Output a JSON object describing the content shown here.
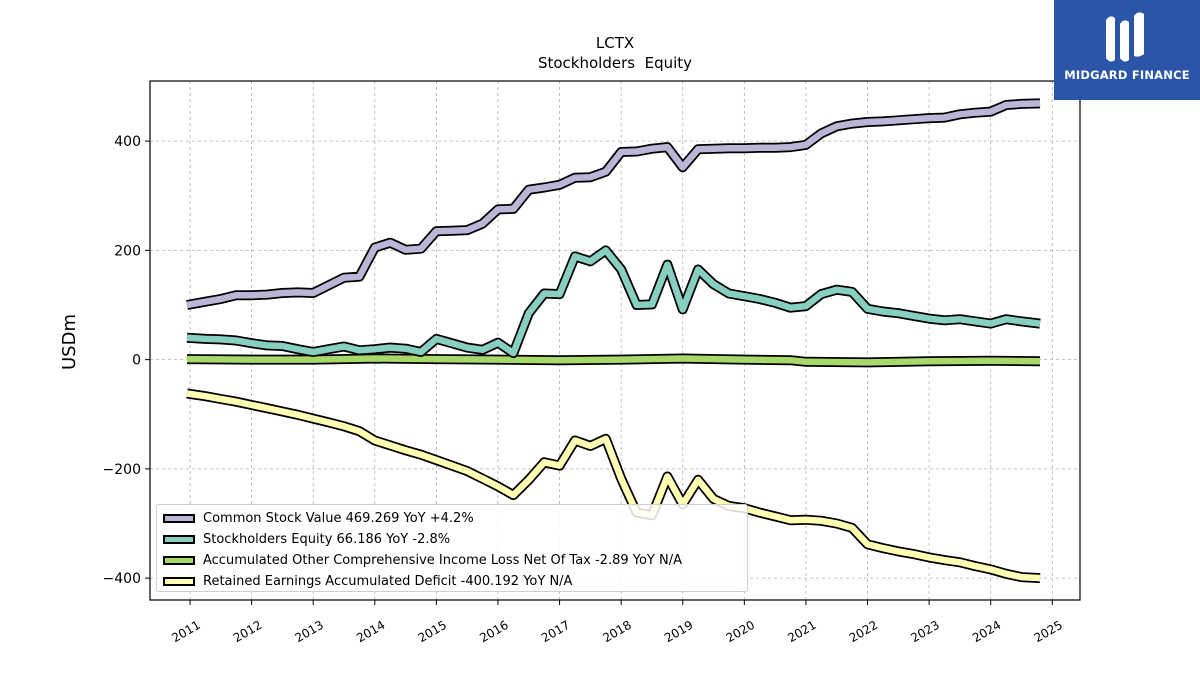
{
  "brand": {
    "name": "MIDGARD FINANCE",
    "background": "#2a55a8",
    "logo_icon": "midgard-logo-icon"
  },
  "chart_data": {
    "type": "line",
    "title": "LCTX",
    "subtitle": "Stockholders  Equity",
    "ylabel": "USDm",
    "xlabel": "",
    "ylim": [
      -440,
      510
    ],
    "xlim": [
      2010.35,
      2025.45
    ],
    "grid": true,
    "legend_position": "lower-left",
    "x_ticks": [
      2011,
      2012,
      2013,
      2014,
      2015,
      2016,
      2017,
      2018,
      2019,
      2020,
      2021,
      2022,
      2023,
      2024,
      2025
    ],
    "x_tick_labels": [
      "2011",
      "2012",
      "2013",
      "2014",
      "2015",
      "2016",
      "2017",
      "2018",
      "2019",
      "2020",
      "2021",
      "2022",
      "2023",
      "2024",
      "2025"
    ],
    "y_ticks": [
      400,
      200,
      0,
      -200,
      -400
    ],
    "y_tick_labels": [
      "400",
      "200",
      "0",
      "−200",
      "−400"
    ],
    "series": [
      {
        "name": "Common Stock Value",
        "legend_label": "Common Stock Value  469.269 YoY +4.2%",
        "color": "#bcb5d8",
        "x": [
          2010.95,
          2011.25,
          2011.5,
          2011.75,
          2012.0,
          2012.25,
          2012.5,
          2012.75,
          2013.0,
          2013.25,
          2013.5,
          2013.75,
          2014.0,
          2014.25,
          2014.5,
          2014.75,
          2015.0,
          2015.25,
          2015.5,
          2015.75,
          2016.0,
          2016.25,
          2016.5,
          2016.75,
          2017.0,
          2017.25,
          2017.5,
          2017.75,
          2018.0,
          2018.25,
          2018.5,
          2018.75,
          2019.0,
          2019.25,
          2019.5,
          2019.75,
          2020.0,
          2020.25,
          2020.5,
          2020.75,
          2021.0,
          2021.25,
          2021.5,
          2021.75,
          2022.0,
          2022.25,
          2022.5,
          2022.75,
          2023.0,
          2023.25,
          2023.5,
          2023.75,
          2024.0,
          2024.25,
          2024.5,
          2024.8
        ],
        "values": [
          100,
          106,
          111,
          118,
          118,
          119,
          122,
          123,
          122,
          136,
          150,
          152,
          205,
          214,
          201,
          203,
          235,
          236,
          237,
          249,
          275,
          276,
          311,
          315,
          320,
          333,
          334,
          344,
          380,
          381,
          386,
          389,
          352,
          385,
          386,
          387,
          387,
          388,
          388,
          389,
          393,
          414,
          427,
          432,
          435,
          436,
          438,
          440,
          442,
          443,
          449,
          452,
          454,
          466,
          468,
          469
        ]
      },
      {
        "name": "Stockholders Equity",
        "legend_label": "Stockholders Equity  66.186 YoY -2.8%",
        "color": "#87cfc1",
        "x": [
          2010.95,
          2011.25,
          2011.5,
          2011.75,
          2012.0,
          2012.25,
          2012.5,
          2012.75,
          2013.0,
          2013.25,
          2013.5,
          2013.75,
          2014.0,
          2014.25,
          2014.5,
          2014.75,
          2015.0,
          2015.25,
          2015.5,
          2015.75,
          2016.0,
          2016.25,
          2016.5,
          2016.75,
          2017.0,
          2017.25,
          2017.5,
          2017.75,
          2018.0,
          2018.25,
          2018.5,
          2018.75,
          2019.0,
          2019.25,
          2019.5,
          2019.75,
          2020.0,
          2020.25,
          2020.5,
          2020.75,
          2021.0,
          2021.25,
          2021.5,
          2021.75,
          2022.0,
          2022.25,
          2022.5,
          2022.75,
          2023.0,
          2023.25,
          2023.5,
          2023.75,
          2024.0,
          2024.25,
          2024.5,
          2024.8
        ],
        "values": [
          40,
          38,
          37,
          35,
          30,
          26,
          25,
          19,
          14,
          19,
          24,
          17,
          19,
          22,
          20,
          14,
          38,
          30,
          22,
          18,
          31,
          12,
          85,
          121,
          120,
          189,
          180,
          200,
          165,
          100,
          101,
          174,
          92,
          165,
          138,
          121,
          116,
          111,
          104,
          95,
          98,
          120,
          128,
          124,
          93,
          88,
          85,
          80,
          75,
          72,
          74,
          70,
          66,
          74,
          70,
          66
        ]
      },
      {
        "name": "Accumulated Other Comprehensive Income Loss Net Of Tax",
        "legend_label": "Accumulated Other Comprehensive Income Loss Net Of Tax  -2.89 YoY N/A",
        "color": "#a6d96a",
        "x": [
          2010.95,
          2012.0,
          2013.0,
          2014.0,
          2015.0,
          2016.0,
          2017.0,
          2018.0,
          2019.0,
          2020.0,
          2020.75,
          2021.0,
          2022.0,
          2023.0,
          2024.0,
          2024.8
        ],
        "values": [
          1,
          0,
          0,
          2,
          1,
          0,
          -1,
          0,
          2,
          0,
          -1,
          -4,
          -5,
          -3,
          -2,
          -3
        ]
      },
      {
        "name": "Retained Earnings Accumulated Deficit",
        "legend_label": "Retained Earnings Accumulated Deficit  -400.192 YoY N/A",
        "color": "#ffffb3",
        "x": [
          2010.95,
          2011.25,
          2011.5,
          2011.75,
          2012.0,
          2012.25,
          2012.5,
          2012.75,
          2013.0,
          2013.25,
          2013.5,
          2013.75,
          2014.0,
          2014.25,
          2014.5,
          2014.75,
          2015.0,
          2015.25,
          2015.5,
          2015.75,
          2016.0,
          2016.25,
          2016.5,
          2016.75,
          2017.0,
          2017.25,
          2017.5,
          2017.75,
          2018.0,
          2018.25,
          2018.5,
          2018.75,
          2019.0,
          2019.25,
          2019.5,
          2019.75,
          2020.0,
          2020.25,
          2020.5,
          2020.75,
          2021.0,
          2021.25,
          2021.5,
          2021.75,
          2022.0,
          2022.25,
          2022.5,
          2022.75,
          2023.0,
          2023.25,
          2023.5,
          2023.75,
          2024.0,
          2024.25,
          2024.5,
          2024.8
        ],
        "values": [
          -62,
          -67,
          -72,
          -77,
          -83,
          -89,
          -95,
          -101,
          -108,
          -115,
          -122,
          -131,
          -148,
          -157,
          -166,
          -174,
          -184,
          -194,
          -204,
          -218,
          -232,
          -248,
          -220,
          -188,
          -194,
          -148,
          -158,
          -145,
          -218,
          -280,
          -285,
          -214,
          -265,
          -220,
          -255,
          -268,
          -272,
          -280,
          -287,
          -294,
          -293,
          -295,
          -300,
          -308,
          -338,
          -345,
          -351,
          -356,
          -362,
          -367,
          -371,
          -378,
          -384,
          -392,
          -398,
          -400
        ]
      }
    ]
  }
}
